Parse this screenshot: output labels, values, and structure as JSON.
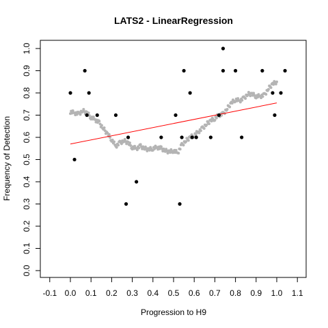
{
  "chart_data": {
    "type": "scatter",
    "title": "LATS2 - LinearRegression",
    "xlabel": "Progression to H9",
    "ylabel": "Frequency of Detection",
    "xlim": [
      -0.1,
      1.1
    ],
    "ylim": [
      0.0,
      1.0
    ],
    "x_ticks": [
      "-0.1",
      "0.0",
      "0.1",
      "0.2",
      "0.3",
      "0.4",
      "0.5",
      "0.6",
      "0.7",
      "0.8",
      "0.9",
      "1.0",
      "1.1"
    ],
    "y_ticks": [
      "0.0",
      "0.1",
      "0.2",
      "0.3",
      "0.4",
      "0.5",
      "0.6",
      "0.7",
      "0.8",
      "0.9",
      "1.0"
    ],
    "grid": false,
    "colors": {
      "points": "#000000",
      "smooth": "#b4b4b4",
      "regression": "#ff0000"
    },
    "series": [
      {
        "kind": "points",
        "points": [
          [
            0.0,
            0.8
          ],
          [
            0.02,
            0.5
          ],
          [
            0.07,
            0.9
          ],
          [
            0.08,
            0.7
          ],
          [
            0.09,
            0.8
          ],
          [
            0.13,
            0.7
          ],
          [
            0.22,
            0.7
          ],
          [
            0.27,
            0.3
          ],
          [
            0.28,
            0.6
          ],
          [
            0.32,
            0.4
          ],
          [
            0.44,
            0.6
          ],
          [
            0.51,
            0.7
          ],
          [
            0.53,
            0.3
          ],
          [
            0.54,
            0.6
          ],
          [
            0.55,
            0.9
          ],
          [
            0.58,
            0.8
          ],
          [
            0.59,
            0.6
          ],
          [
            0.61,
            0.6
          ],
          [
            0.68,
            0.6
          ],
          [
            0.72,
            0.7
          ],
          [
            0.74,
            1.0
          ],
          [
            0.74,
            0.9
          ],
          [
            0.8,
            0.9
          ],
          [
            0.83,
            0.6
          ],
          [
            0.93,
            0.9
          ],
          [
            0.98,
            0.8
          ],
          [
            0.99,
            0.7
          ],
          [
            1.02,
            0.8
          ],
          [
            1.04,
            0.9
          ]
        ]
      },
      {
        "kind": "smooth",
        "points": [
          [
            0.0,
            0.715
          ],
          [
            0.02,
            0.71
          ],
          [
            0.04,
            0.705
          ],
          [
            0.06,
            0.72
          ],
          [
            0.08,
            0.71
          ],
          [
            0.1,
            0.69
          ],
          [
            0.12,
            0.68
          ],
          [
            0.14,
            0.665
          ],
          [
            0.16,
            0.64
          ],
          [
            0.18,
            0.615
          ],
          [
            0.2,
            0.59
          ],
          [
            0.22,
            0.56
          ],
          [
            0.24,
            0.575
          ],
          [
            0.26,
            0.585
          ],
          [
            0.28,
            0.575
          ],
          [
            0.3,
            0.555
          ],
          [
            0.32,
            0.55
          ],
          [
            0.34,
            0.56
          ],
          [
            0.36,
            0.55
          ],
          [
            0.38,
            0.545
          ],
          [
            0.4,
            0.55
          ],
          [
            0.42,
            0.555
          ],
          [
            0.44,
            0.55
          ],
          [
            0.46,
            0.54
          ],
          [
            0.48,
            0.535
          ],
          [
            0.5,
            0.54
          ],
          [
            0.52,
            0.53
          ],
          [
            0.54,
            0.565
          ],
          [
            0.56,
            0.585
          ],
          [
            0.58,
            0.6
          ],
          [
            0.6,
            0.61
          ],
          [
            0.62,
            0.625
          ],
          [
            0.64,
            0.64
          ],
          [
            0.66,
            0.66
          ],
          [
            0.68,
            0.675
          ],
          [
            0.7,
            0.685
          ],
          [
            0.72,
            0.7
          ],
          [
            0.74,
            0.705
          ],
          [
            0.76,
            0.73
          ],
          [
            0.78,
            0.755
          ],
          [
            0.8,
            0.77
          ],
          [
            0.82,
            0.765
          ],
          [
            0.84,
            0.775
          ],
          [
            0.86,
            0.795
          ],
          [
            0.88,
            0.795
          ],
          [
            0.9,
            0.785
          ],
          [
            0.92,
            0.785
          ],
          [
            0.94,
            0.79
          ],
          [
            0.96,
            0.82
          ],
          [
            0.98,
            0.84
          ],
          [
            1.0,
            0.85
          ]
        ]
      },
      {
        "kind": "regression",
        "points": [
          [
            0.0,
            0.57
          ],
          [
            1.0,
            0.755
          ]
        ]
      }
    ]
  }
}
